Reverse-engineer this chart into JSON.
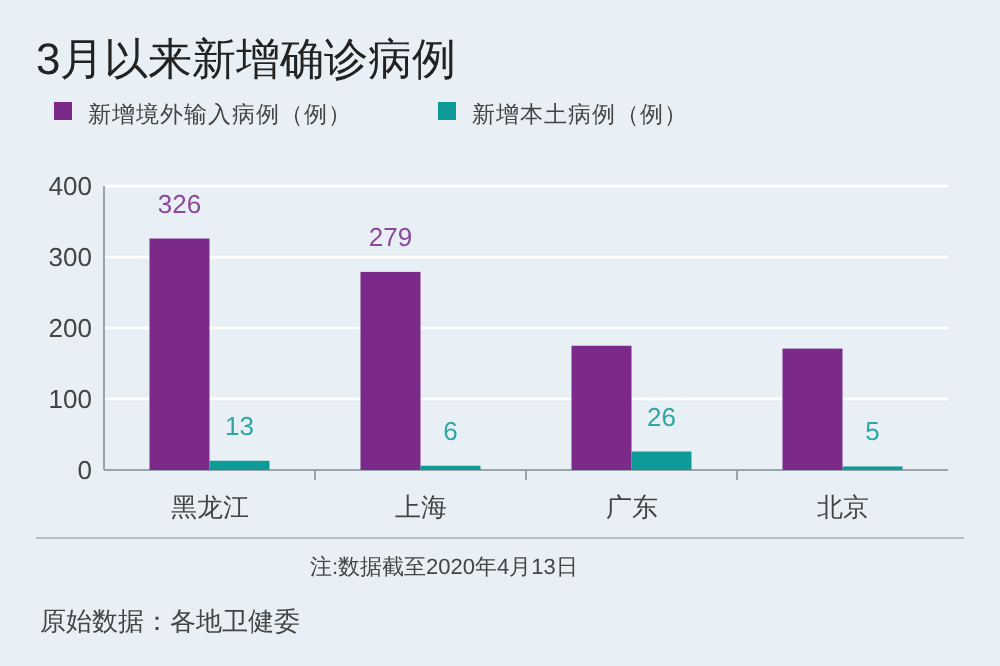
{
  "chart_data": {
    "type": "bar",
    "title": "3月以来新增确诊病例",
    "categories": [
      "黑龙江",
      "上海",
      "广东",
      "北京"
    ],
    "series": [
      {
        "name": "新增境外输入病例（例）",
        "color": "#7b2a8a",
        "values": [
          326,
          279,
          175,
          171
        ],
        "value_labels": [
          "326",
          "279",
          null,
          null
        ]
      },
      {
        "name": "新增本土病例（例）",
        "color": "#0e9a96",
        "values": [
          13,
          6,
          26,
          5
        ],
        "value_labels": [
          "13",
          "6",
          "26",
          "5"
        ]
      }
    ],
    "ylim": [
      0,
      400
    ],
    "yticks": [
      0,
      100,
      200,
      300,
      400
    ],
    "grid": "y",
    "legend": "top left",
    "annotations": [
      "注:数据截至2020年4月13日",
      "原始数据：各地卫健委"
    ]
  }
}
